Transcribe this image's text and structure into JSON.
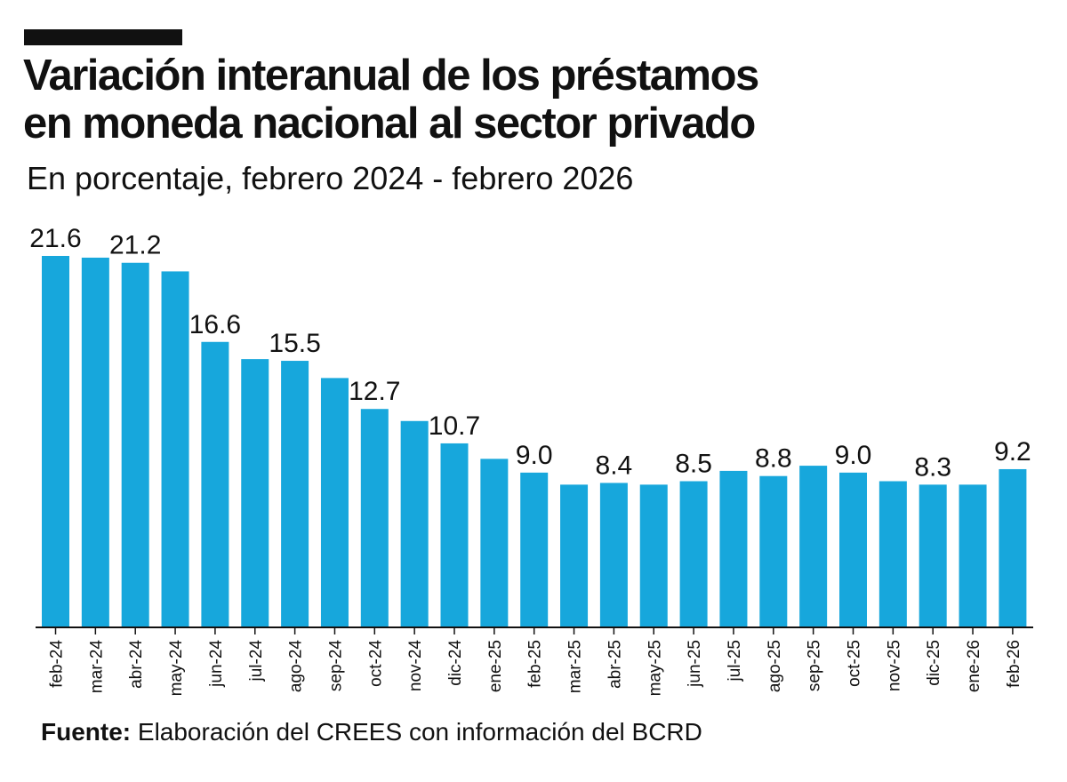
{
  "title_line1": "Variación interanual de los préstamos",
  "title_line2": "en moneda nacional al sector privado",
  "subtitle": "En porcentaje, febrero 2024 - febrero 2026",
  "source_label": "Fuente:",
  "source_text": "Elaboración del CREES con información del BCRD",
  "chart_data": {
    "type": "bar",
    "title": "Variación interanual de los préstamos en moneda nacional al sector privado",
    "subtitle": "En porcentaje, febrero 2024 - febrero 2026",
    "categories": [
      "feb-24",
      "mar-24",
      "abr-24",
      "may-24",
      "jun-24",
      "jul-24",
      "ago-24",
      "sep-24",
      "oct-24",
      "nov-24",
      "dic-24",
      "ene-25",
      "feb-25",
      "mar-25",
      "abr-25",
      "may-25",
      "jun-25",
      "jul-25",
      "ago-25",
      "sep-25",
      "oct-25",
      "nov-25",
      "dic-25",
      "ene-26",
      "feb-26"
    ],
    "values": [
      21.6,
      21.5,
      21.2,
      20.7,
      16.6,
      15.6,
      15.5,
      14.5,
      12.7,
      12.0,
      10.7,
      9.8,
      9.0,
      8.3,
      8.4,
      8.3,
      8.5,
      9.1,
      8.8,
      9.4,
      9.0,
      8.5,
      8.3,
      8.3,
      9.2
    ],
    "labeled": [
      true,
      false,
      true,
      false,
      true,
      false,
      true,
      false,
      true,
      false,
      true,
      false,
      true,
      false,
      true,
      false,
      true,
      false,
      true,
      false,
      true,
      false,
      true,
      false,
      true
    ],
    "value_labels": [
      "21.6",
      "",
      "21.2",
      "",
      "16.6",
      "",
      "15.5",
      "",
      "12.7",
      "",
      "10.7",
      "",
      "9.0",
      "",
      "8.4",
      "",
      "8.5",
      "",
      "8.8",
      "",
      "9.0",
      "",
      "8.3",
      "",
      "9.2"
    ],
    "ylim": [
      0,
      21.6
    ],
    "grid": false,
    "color": "#17a7dc",
    "xlabel": "",
    "ylabel": ""
  }
}
